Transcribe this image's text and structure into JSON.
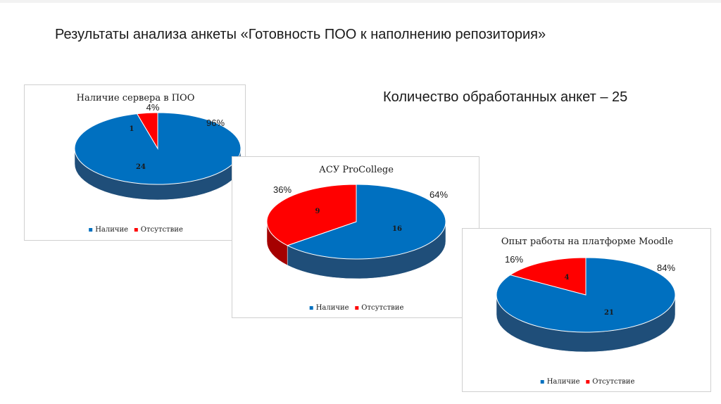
{
  "slide": {
    "title": "Результаты анализа анкеты «Готовность ПОО к наполнению репозитория»",
    "subtitle": "Количество обработанных анкет – 25"
  },
  "colors": {
    "present": "#0070c0",
    "absent": "#ff0000"
  },
  "chart_data": [
    {
      "type": "pie",
      "style": "3d",
      "title": "Наличие сервера в ПОО",
      "categories": [
        "Наличие",
        "Отсутствие"
      ],
      "values": [
        24,
        1
      ],
      "percent_labels": [
        "96%",
        "4%"
      ],
      "legend": {
        "position": "bottom",
        "entries": [
          "Наличие",
          "Отсутствие"
        ]
      }
    },
    {
      "type": "pie",
      "style": "3d",
      "title": "АСУ ProCollege",
      "categories": [
        "Наличие",
        "Отсутствие"
      ],
      "values": [
        16,
        9
      ],
      "percent_labels": [
        "64%",
        "36%"
      ],
      "legend": {
        "position": "bottom",
        "entries": [
          "Наличие",
          "Отсутствие"
        ]
      }
    },
    {
      "type": "pie",
      "style": "3d",
      "title": "Опыт работы на платформе Moodle",
      "categories": [
        "Наличие",
        "Отсутствие"
      ],
      "values": [
        21,
        4
      ],
      "percent_labels": [
        "84%",
        "16%"
      ],
      "legend": {
        "position": "bottom",
        "entries": [
          "Наличие",
          "Отсутствие"
        ]
      }
    }
  ]
}
